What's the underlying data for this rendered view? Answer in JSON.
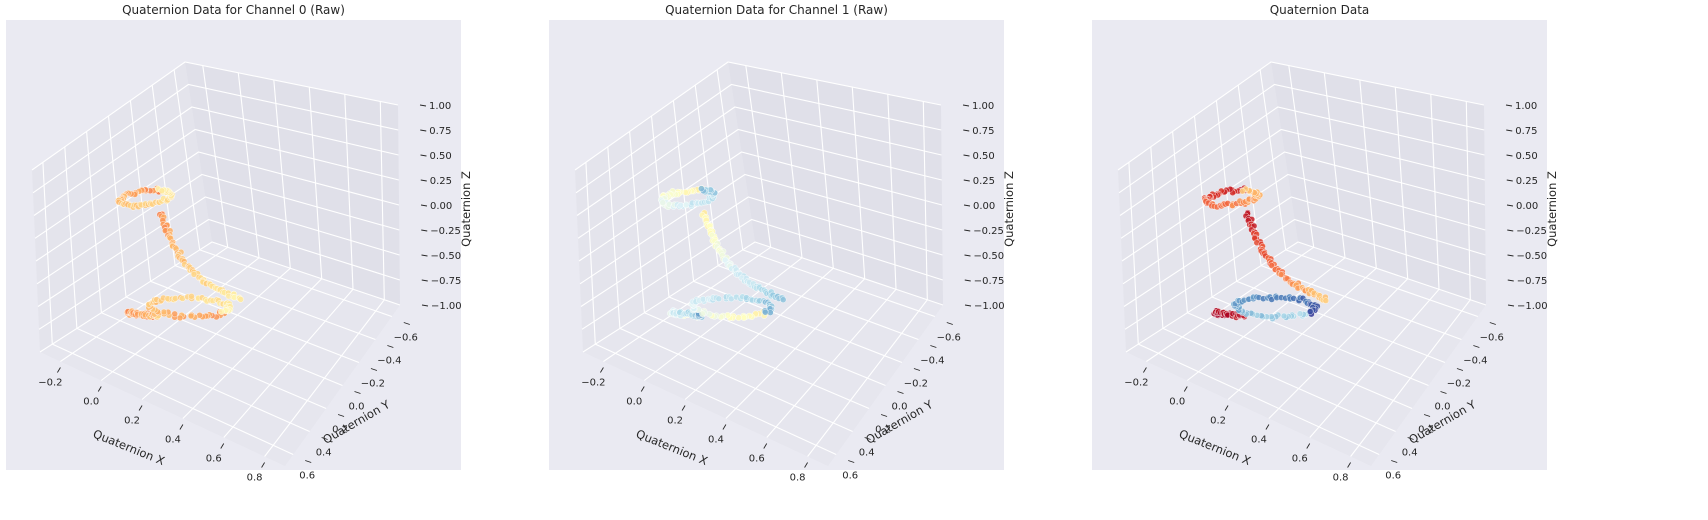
{
  "chart_data": [
    {
      "type": "scatter",
      "projection": "3d",
      "title": "Quaternion Data for Channel 0 (Raw)",
      "xlabel": "Quaternion X",
      "ylabel": "Quaternion Y",
      "zlabel": "Quaternion Z",
      "x_ticks": [
        "−0.2",
        "0.0",
        "0.2",
        "0.4",
        "0.6",
        "0.8"
      ],
      "y_ticks": [
        "−0.6",
        "−0.4",
        "−0.2",
        "0.0",
        "0.2",
        "0.4",
        "0.6"
      ],
      "z_ticks": [
        "−1.00",
        "−0.75",
        "−0.50",
        "−0.25",
        "0.00",
        "0.25",
        "0.50",
        "0.75",
        "1.00"
      ],
      "xlim": [
        -0.3,
        0.9
      ],
      "ylim": [
        -0.7,
        0.7
      ],
      "zlim": [
        -1.0,
        1.0
      ],
      "grid": true,
      "colormap": "RdYlBu",
      "colormap_range": [
        0.22,
        0.4
      ],
      "clusters": [
        {
          "x": [
            -0.16,
            -0.03
          ],
          "y": [
            0.1,
            0.22
          ],
          "z": [
            -0.95,
            -0.8
          ],
          "shape": "loop",
          "color_range": [
            0.2,
            0.35
          ]
        },
        {
          "x": [
            0.0,
            0.15
          ],
          "y": [
            0.15,
            0.55
          ],
          "z": [
            0.45,
            0.95
          ],
          "shape": "loop",
          "color_range": [
            0.25,
            0.45
          ]
        },
        {
          "x": [
            0.15,
            0.55
          ],
          "y": [
            0.15,
            0.55
          ],
          "z": [
            0.0,
            0.6
          ],
          "shape": "arc",
          "color_range": [
            0.25,
            0.45
          ]
        },
        {
          "x": [
            0.1,
            0.45
          ],
          "y": [
            0.15,
            0.55
          ],
          "z": [
            -0.45,
            -0.15
          ],
          "shape": "loop",
          "color_range": [
            0.25,
            0.45
          ]
        }
      ]
    },
    {
      "type": "scatter",
      "projection": "3d",
      "title": "Quaternion Data for Channel 1 (Raw)",
      "xlabel": "Quaternion X",
      "ylabel": "Quaternion Y",
      "zlabel": "Quaternion Z",
      "x_ticks": [
        "−0.2",
        "0.0",
        "0.2",
        "0.4",
        "0.6",
        "0.8"
      ],
      "y_ticks": [
        "−0.6",
        "−0.4",
        "−0.2",
        "0.0",
        "0.2",
        "0.4",
        "0.6"
      ],
      "z_ticks": [
        "−1.00",
        "−0.75",
        "−0.50",
        "−0.25",
        "0.00",
        "0.25",
        "0.50",
        "0.75",
        "1.00"
      ],
      "xlim": [
        -0.3,
        0.9
      ],
      "ylim": [
        -0.7,
        0.7
      ],
      "zlim": [
        -1.0,
        1.0
      ],
      "grid": true,
      "colormap": "RdYlBu",
      "colormap_range": [
        0.45,
        0.75
      ],
      "clusters": [
        {
          "x": [
            -0.16,
            -0.03
          ],
          "y": [
            0.1,
            0.22
          ],
          "z": [
            -0.95,
            -0.8
          ],
          "shape": "loop",
          "color_range": [
            0.45,
            0.8
          ]
        },
        {
          "x": [
            0.0,
            0.15
          ],
          "y": [
            0.15,
            0.55
          ],
          "z": [
            0.45,
            0.95
          ],
          "shape": "loop",
          "color_range": [
            0.45,
            0.75
          ]
        },
        {
          "x": [
            0.15,
            0.55
          ],
          "y": [
            0.15,
            0.55
          ],
          "z": [
            0.0,
            0.6
          ],
          "shape": "arc",
          "color_range": [
            0.45,
            0.75
          ]
        },
        {
          "x": [
            0.1,
            0.45
          ],
          "y": [
            0.15,
            0.55
          ],
          "z": [
            -0.45,
            -0.15
          ],
          "shape": "loop",
          "color_range": [
            0.45,
            0.8
          ]
        }
      ]
    },
    {
      "type": "scatter",
      "projection": "3d",
      "title": "Quaternion Data",
      "xlabel": "Quaternion X",
      "ylabel": "Quaternion Y",
      "zlabel": "Quaternion Z",
      "x_ticks": [
        "−0.2",
        "0.0",
        "0.2",
        "0.4",
        "0.6",
        "0.8"
      ],
      "y_ticks": [
        "−0.6",
        "−0.4",
        "−0.2",
        "0.0",
        "0.2",
        "0.4",
        "0.6"
      ],
      "z_ticks": [
        "−1.00",
        "−0.75",
        "−0.50",
        "−0.25",
        "0.00",
        "0.25",
        "0.50",
        "0.75",
        "1.00"
      ],
      "xlim": [
        -0.3,
        0.9
      ],
      "ylim": [
        -0.7,
        0.7
      ],
      "zlim": [
        -1.0,
        1.0
      ],
      "grid": true,
      "colormap": "RdYlBu",
      "colormap_range": [
        0.0,
        1.0
      ],
      "clusters": [
        {
          "x": [
            -0.16,
            -0.03
          ],
          "y": [
            0.1,
            0.22
          ],
          "z": [
            -0.95,
            -0.8
          ],
          "shape": "loop",
          "color_range": [
            0.0,
            0.05
          ]
        },
        {
          "x": [
            0.0,
            0.15
          ],
          "y": [
            0.15,
            0.55
          ],
          "z": [
            0.45,
            0.95
          ],
          "shape": "loop",
          "color_range": [
            0.05,
            0.35
          ]
        },
        {
          "x": [
            0.15,
            0.55
          ],
          "y": [
            0.15,
            0.55
          ],
          "z": [
            0.0,
            0.6
          ],
          "shape": "arc",
          "color_range": [
            0.05,
            0.35
          ]
        },
        {
          "x": [
            0.1,
            0.45
          ],
          "y": [
            0.15,
            0.55
          ],
          "z": [
            -0.45,
            -0.15
          ],
          "shape": "loop",
          "color_range": [
            0.68,
            0.98
          ]
        }
      ]
    }
  ]
}
